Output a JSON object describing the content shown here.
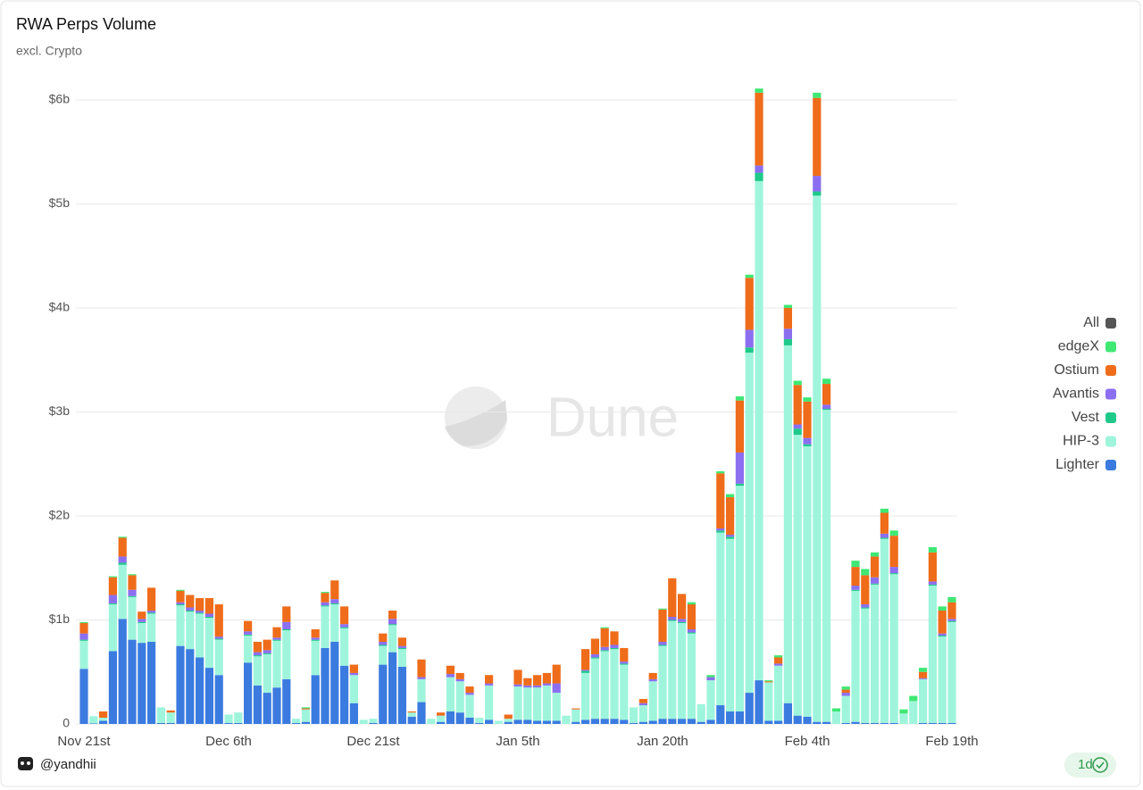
{
  "chart_data": {
    "type": "stacked_bar",
    "title": "RWA Perps Volume",
    "subtitle": "excl. Crypto",
    "watermark": "Dune",
    "categories": [
      "Nov 21st",
      null,
      null,
      null,
      null,
      null,
      null,
      null,
      null,
      null,
      null,
      null,
      null,
      null,
      null,
      "Dec 6th",
      null,
      null,
      null,
      null,
      null,
      null,
      null,
      null,
      null,
      null,
      null,
      null,
      null,
      null,
      "Dec 21st",
      null,
      null,
      null,
      null,
      null,
      null,
      null,
      null,
      null,
      null,
      null,
      null,
      null,
      null,
      "Jan 5th",
      null,
      null,
      null,
      null,
      null,
      null,
      null,
      null,
      null,
      null,
      null,
      null,
      null,
      null,
      "Jan 20th",
      null,
      null,
      null,
      null,
      null,
      null,
      null,
      null,
      null,
      null,
      null,
      null,
      null,
      null,
      "Feb 4th",
      null,
      null,
      null,
      null,
      null,
      null,
      null,
      null,
      null,
      null,
      null,
      null,
      null,
      null,
      "Feb 19th"
    ],
    "series": [
      {
        "name": "Lighter",
        "color": "#3b7be0",
        "values": [
          0.53,
          0.005,
          0.03,
          0.7,
          1.01,
          0.81,
          0.78,
          0.79,
          0.01,
          0.01,
          0.75,
          0.72,
          0.64,
          0.54,
          0.47,
          0.01,
          0.01,
          0.59,
          0.37,
          0.3,
          0.35,
          0.43,
          0.01,
          0.02,
          0.47,
          0.73,
          0.79,
          0.56,
          0.2,
          0,
          0.01,
          0.57,
          0.69,
          0.55,
          0.07,
          0.21,
          0,
          0.02,
          0.12,
          0.11,
          0.06,
          0.01,
          0.04,
          0,
          0.02,
          0.04,
          0.04,
          0.03,
          0.03,
          0.03,
          0,
          0.02,
          0.04,
          0.05,
          0.05,
          0.05,
          0.04,
          0.01,
          0.02,
          0.03,
          0.05,
          0.05,
          0.05,
          0.05,
          0.02,
          0.04,
          0.18,
          0.12,
          0.12,
          0.3,
          0.42,
          0.03,
          0.03,
          0.2,
          0.08,
          0.07,
          0.02,
          0.02,
          0,
          0.01,
          0.02,
          0.01,
          0.01,
          0.01,
          0.01,
          0,
          0,
          0.01,
          0.01,
          0.01,
          0.01
        ]
      },
      {
        "name": "HIP-3",
        "color": "#9ff5dc",
        "values": [
          0.27,
          0.07,
          0.03,
          0.45,
          0.52,
          0.41,
          0.19,
          0.27,
          0.15,
          0.1,
          0.39,
          0.36,
          0.42,
          0.48,
          0.34,
          0.08,
          0.1,
          0.26,
          0.28,
          0.37,
          0.45,
          0.47,
          0.04,
          0.12,
          0.33,
          0.4,
          0.36,
          0.36,
          0.27,
          0.04,
          0.04,
          0.18,
          0.26,
          0.17,
          0.04,
          0.22,
          0.05,
          0.06,
          0.33,
          0.3,
          0.22,
          0.05,
          0.33,
          0.03,
          0.03,
          0.32,
          0.31,
          0.32,
          0.34,
          0.27,
          0.08,
          0.12,
          0.45,
          0.58,
          0.65,
          0.67,
          0.53,
          0.15,
          0.16,
          0.38,
          0.7,
          0.94,
          0.92,
          0.82,
          0.17,
          0.38,
          1.66,
          1.66,
          2.17,
          3.27,
          4.8,
          0.37,
          0.53,
          3.44,
          2.7,
          2.6,
          5.06,
          3.0,
          0.12,
          0.26,
          1.26,
          1.1,
          1.33,
          1.77,
          1.43,
          0.1,
          0.22,
          0.42,
          1.32,
          0.83,
          0.97
        ]
      },
      {
        "name": "Vest",
        "color": "#1fc98a",
        "values": [
          0.01,
          0,
          0,
          0.01,
          0.02,
          0.01,
          0.01,
          0.01,
          0,
          0,
          0.01,
          0.01,
          0.01,
          0.01,
          0.01,
          0,
          0,
          0.01,
          0.01,
          0.01,
          0.01,
          0.01,
          0,
          0,
          0.01,
          0.01,
          0.01,
          0.01,
          0,
          0,
          0,
          0.01,
          0.01,
          0.01,
          0,
          0,
          0,
          0,
          0,
          0,
          0,
          0,
          0,
          0,
          0,
          0,
          0,
          0,
          0,
          0,
          0,
          0,
          0.02,
          0.01,
          0.01,
          0.01,
          0.01,
          0,
          0,
          0,
          0.01,
          0.01,
          0.01,
          0.01,
          0,
          0,
          0.02,
          0.02,
          0.02,
          0.05,
          0.08,
          0,
          0,
          0.06,
          0.06,
          0.02,
          0.04,
          0.01,
          0,
          0,
          0.01,
          0.01,
          0.01,
          0.01,
          0.01,
          0,
          0,
          0,
          0.01,
          0.01,
          0.01
        ]
      },
      {
        "name": "Avantis",
        "color": "#8b6ff0",
        "values": [
          0.06,
          0,
          0,
          0.08,
          0.06,
          0.06,
          0.03,
          0.02,
          0,
          0,
          0.02,
          0.03,
          0.02,
          0.03,
          0.02,
          0,
          0,
          0.03,
          0.03,
          0.03,
          0.02,
          0.07,
          0,
          0,
          0.02,
          0.03,
          0.04,
          0.03,
          0.02,
          0,
          0,
          0.03,
          0.05,
          0.02,
          0,
          0.02,
          0,
          0,
          0.03,
          0.02,
          0.02,
          0,
          0.02,
          0,
          0,
          0.02,
          0.02,
          0.02,
          0.02,
          0.09,
          0,
          0,
          0.01,
          0.03,
          0.03,
          0.03,
          0.02,
          0,
          0.02,
          0.02,
          0.03,
          0.03,
          0.03,
          0.03,
          0,
          0.03,
          0.02,
          0.02,
          0.3,
          0.17,
          0.07,
          0,
          0.02,
          0.1,
          0.04,
          0.06,
          0.15,
          0.04,
          0,
          0.03,
          0.04,
          0.03,
          0.06,
          0.04,
          0.06,
          0,
          0,
          0.01,
          0.03,
          0.02,
          0.02
        ]
      },
      {
        "name": "Ostium",
        "color": "#ef6c1a",
        "values": [
          0.1,
          0,
          0.06,
          0.17,
          0.18,
          0.14,
          0.07,
          0.22,
          0,
          0.02,
          0.11,
          0.12,
          0.12,
          0.15,
          0.31,
          0,
          0,
          0.1,
          0.1,
          0.1,
          0.1,
          0.15,
          0,
          0.01,
          0.08,
          0.09,
          0.18,
          0.17,
          0.08,
          0,
          0,
          0.08,
          0.08,
          0.08,
          0.01,
          0.17,
          0,
          0.03,
          0.08,
          0.06,
          0.06,
          0,
          0.08,
          0,
          0.04,
          0.14,
          0.07,
          0.1,
          0.1,
          0.18,
          0,
          0.01,
          0.2,
          0.15,
          0.18,
          0.13,
          0.13,
          0,
          0.04,
          0.06,
          0.31,
          0.37,
          0.24,
          0.24,
          0,
          0,
          0.53,
          0.36,
          0.5,
          0.5,
          0.7,
          0.01,
          0.06,
          0.2,
          0.38,
          0.35,
          0.75,
          0.2,
          0,
          0.03,
          0.18,
          0.28,
          0.2,
          0.2,
          0.3,
          0,
          0,
          0.06,
          0.28,
          0.22,
          0.16
        ]
      },
      {
        "name": "edgeX",
        "color": "#3ee873",
        "values": [
          0.01,
          0,
          0,
          0.01,
          0.01,
          0.01,
          0,
          0,
          0,
          0,
          0.01,
          0,
          0,
          0,
          0,
          0,
          0,
          0,
          0,
          0,
          0,
          0,
          0,
          0.01,
          0,
          0.01,
          0,
          0,
          0,
          0,
          0,
          0,
          0,
          0,
          0,
          0,
          0,
          0,
          0,
          0,
          0,
          0,
          0,
          0,
          0,
          0,
          0,
          0,
          0,
          0,
          0,
          0,
          0,
          0,
          0.01,
          0,
          0,
          0,
          0,
          0,
          0.01,
          0,
          0,
          0.02,
          0,
          0.02,
          0.02,
          0.03,
          0.04,
          0.03,
          0.04,
          0.01,
          0.02,
          0.03,
          0.04,
          0.04,
          0.05,
          0.05,
          0.03,
          0.03,
          0.06,
          0.06,
          0.04,
          0.04,
          0.05,
          0.04,
          0.05,
          0.04,
          0.05,
          0.04,
          0.05
        ]
      },
      {
        "name": "All",
        "color": "#555555",
        "values": [
          null,
          null,
          null,
          null,
          null,
          null,
          null,
          null,
          null,
          null,
          null,
          null,
          null,
          null,
          null,
          null,
          null,
          null,
          null,
          null,
          null,
          null,
          null,
          null,
          null,
          null,
          null,
          null,
          null,
          null,
          null,
          null,
          null,
          null,
          null,
          null,
          null,
          null,
          null,
          null,
          null,
          null,
          null,
          null,
          null,
          null,
          null,
          null,
          null,
          null,
          null,
          null,
          null,
          null,
          null,
          null,
          null,
          null,
          null,
          null,
          null,
          null,
          null,
          null,
          null,
          null,
          null,
          null,
          null,
          null,
          null,
          null,
          null,
          null,
          null,
          null,
          null,
          null,
          null,
          null,
          null,
          null,
          null,
          null,
          null,
          null,
          null,
          null,
          null,
          null,
          null
        ]
      }
    ],
    "ylim": [
      0,
      6.2
    ],
    "yticks": [
      0,
      {
        "value": 1,
        "label": "$1b"
      },
      {
        "value": 2,
        "label": "$2b"
      },
      {
        "value": 3,
        "label": "$3b"
      },
      {
        "value": 4,
        "label": "$4b"
      },
      {
        "value": 5,
        "label": "$5b"
      },
      {
        "value": 6,
        "label": "$6b"
      }
    ],
    "grid": true,
    "legend": "right"
  },
  "footer": {
    "author": "@yandhii",
    "interval": "1d"
  }
}
